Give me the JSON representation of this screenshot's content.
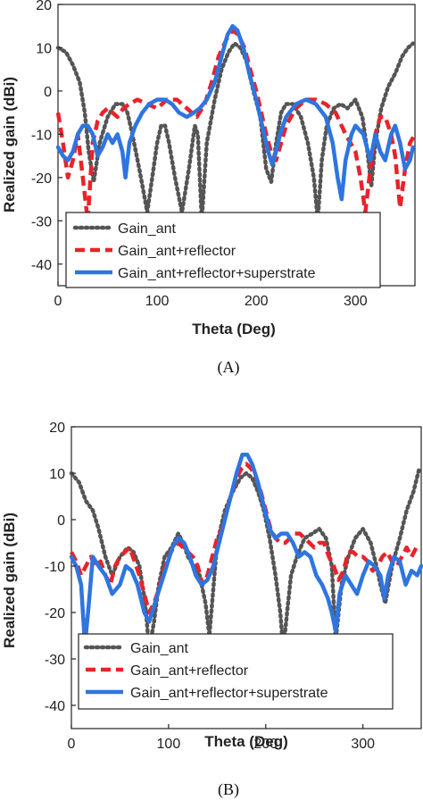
{
  "chart_data": [
    {
      "type": "line",
      "caption": "(A)",
      "xlabel": "Theta (Deg)",
      "ylabel": "Realized gain (dBi)",
      "xlim": [
        0,
        360
      ],
      "ylim": [
        -45,
        20
      ],
      "x_ticks": [
        0,
        100,
        200,
        300
      ],
      "y_ticks": [
        20,
        10,
        0,
        -10,
        -20,
        -30,
        -40
      ],
      "grid": false,
      "legend_position": "bottom-left",
      "series": [
        {
          "name": "Gain_ant",
          "color": "#555555",
          "style": "dotted",
          "x": [
            0,
            8,
            15,
            22,
            27,
            31,
            36,
            42,
            50,
            58,
            65,
            70,
            75,
            82,
            90,
            95,
            100,
            104,
            108,
            112,
            118,
            125,
            132,
            138,
            141,
            145,
            150,
            158,
            165,
            172,
            178,
            184,
            190,
            197,
            204,
            210,
            215,
            220,
            225,
            230,
            237,
            245,
            252,
            258,
            262,
            266,
            271,
            278,
            285,
            292,
            300,
            307,
            312,
            316,
            320,
            326,
            333,
            340,
            347,
            353,
            358
          ],
          "y": [
            10,
            9,
            6,
            2,
            -5,
            -14,
            -21,
            -12,
            -6,
            -3,
            -3,
            -5,
            -10,
            -18,
            -28,
            -20,
            -12,
            -8,
            -8,
            -12,
            -20,
            -28,
            -18,
            -8,
            -10,
            -30,
            -12,
            -2,
            5,
            9,
            11,
            10,
            7,
            0,
            -6,
            -18,
            -21,
            -12,
            -5,
            -3,
            -3,
            -6,
            -12,
            -20,
            -30,
            -16,
            -8,
            -4,
            -3,
            -4,
            -2,
            -6,
            -14,
            -22,
            -12,
            -4,
            1,
            4,
            8,
            10,
            11
          ]
        },
        {
          "name": "Gain_ant+reflector",
          "color": "#e8232a",
          "style": "dashed",
          "x": [
            0,
            5,
            10,
            15,
            20,
            25,
            30,
            35,
            40,
            45,
            50,
            55,
            60,
            66,
            72,
            80,
            90,
            100,
            110,
            120,
            130,
            140,
            148,
            155,
            162,
            170,
            176,
            182,
            188,
            195,
            200,
            205,
            210,
            216,
            220,
            225,
            230,
            240,
            250,
            260,
            270,
            280,
            290,
            300,
            305,
            310,
            315,
            320,
            325,
            330,
            336,
            340,
            345,
            350,
            355,
            360
          ],
          "y": [
            -5,
            -12,
            -20,
            -16,
            -10,
            -20,
            -30,
            -12,
            -7,
            -5,
            -4,
            -5,
            -6,
            -4,
            -3,
            -2,
            -3,
            -4,
            -2,
            -2,
            -4,
            -6,
            -3,
            2,
            8,
            12,
            14,
            13,
            10,
            4,
            0,
            -5,
            -10,
            -15,
            -16,
            -12,
            -8,
            -4,
            -2,
            -2,
            -3,
            -5,
            -10,
            -14,
            -20,
            -28,
            -18,
            -10,
            -6,
            -6,
            -10,
            -15,
            -27,
            -18,
            -12,
            -10
          ]
        },
        {
          "name": "Gain_ant+reflector+superstrate",
          "color": "#2e75e0",
          "style": "solid",
          "x": [
            0,
            5,
            10,
            15,
            20,
            25,
            30,
            35,
            40,
            45,
            50,
            55,
            60,
            65,
            68,
            72,
            78,
            85,
            92,
            100,
            108,
            115,
            122,
            130,
            137,
            143,
            150,
            158,
            165,
            171,
            176,
            181,
            187,
            193,
            200,
            206,
            212,
            216,
            220,
            224,
            230,
            240,
            250,
            260,
            270,
            277,
            282,
            286,
            290,
            296,
            300,
            308,
            315,
            320,
            325,
            330,
            336,
            340,
            345,
            350,
            355,
            358
          ],
          "y": [
            -13,
            -15,
            -16,
            -14,
            -10,
            -8,
            -8,
            -10,
            -15,
            -13,
            -10,
            -12,
            -10,
            -14,
            -20,
            -12,
            -8,
            -5,
            -3,
            -2,
            -2,
            -3,
            -5,
            -6,
            -5,
            -4,
            -2,
            2,
            8,
            13,
            15,
            14,
            10,
            4,
            -2,
            -8,
            -14,
            -17,
            -14,
            -10,
            -6,
            -3,
            -2,
            -3,
            -6,
            -12,
            -20,
            -25,
            -16,
            -10,
            -8,
            -10,
            -16,
            -10,
            -14,
            -16,
            -10,
            -8,
            -12,
            -18,
            -16,
            -13
          ]
        }
      ]
    },
    {
      "type": "line",
      "caption": "(B)",
      "xlabel": "Theta (Deg)",
      "ylabel": "Realized gain (dBi)",
      "xlim": [
        0,
        360
      ],
      "ylim": [
        -45,
        20
      ],
      "x_ticks": [
        0,
        100,
        200,
        300
      ],
      "y_ticks": [
        20,
        10,
        0,
        -10,
        -20,
        -30,
        -40
      ],
      "grid": false,
      "legend_position": "bottom-left",
      "series": [
        {
          "name": "Gain_ant",
          "color": "#555555",
          "style": "dotted",
          "x": [
            0,
            8,
            15,
            22,
            28,
            35,
            42,
            50,
            58,
            64,
            70,
            76,
            80,
            85,
            90,
            96,
            103,
            110,
            115,
            120,
            126,
            132,
            138,
            142,
            146,
            150,
            158,
            166,
            174,
            180,
            186,
            192,
            198,
            204,
            210,
            215,
            218,
            222,
            226,
            232,
            240,
            248,
            255,
            262,
            268,
            272,
            278,
            285,
            292,
            300,
            308,
            314,
            318,
            323,
            330,
            338,
            345,
            352,
            358
          ],
          "y": [
            10,
            8,
            4,
            2,
            -2,
            -8,
            -12,
            -8,
            -6,
            -7,
            -10,
            -18,
            -28,
            -22,
            -14,
            -8,
            -6,
            -3,
            -5,
            -8,
            -10,
            -12,
            -18,
            -25,
            -15,
            -5,
            2,
            6,
            9,
            10,
            9,
            6,
            2,
            -4,
            -12,
            -20,
            -28,
            -20,
            -12,
            -8,
            -4,
            -3,
            -2,
            -4,
            -10,
            -26,
            -14,
            -8,
            -4,
            -2,
            -5,
            -10,
            -14,
            -18,
            -10,
            -4,
            2,
            6,
            11
          ]
        },
        {
          "name": "Gain_ant+reflector",
          "color": "#e8232a",
          "style": "dashed",
          "x": [
            0,
            5,
            10,
            15,
            20,
            25,
            30,
            35,
            40,
            45,
            50,
            55,
            60,
            65,
            70,
            75,
            80,
            85,
            90,
            95,
            100,
            105,
            110,
            115,
            120,
            125,
            130,
            135,
            140,
            145,
            150,
            155,
            160,
            165,
            170,
            175,
            180,
            185,
            190,
            195,
            200,
            205,
            210,
            215,
            220,
            225,
            230,
            235,
            240,
            245,
            250,
            255,
            260,
            265,
            270,
            275,
            280,
            285,
            290,
            295,
            300,
            305,
            310,
            315,
            320,
            325,
            330,
            335,
            340,
            345,
            350,
            355,
            360
          ],
          "y": [
            -7,
            -9,
            -12,
            -10,
            -8,
            -10,
            -9,
            -12,
            -14,
            -10,
            -8,
            -7,
            -6,
            -9,
            -12,
            -16,
            -20,
            -18,
            -15,
            -11,
            -8,
            -6,
            -5,
            -6,
            -7,
            -8,
            -10,
            -14,
            -12,
            -8,
            -4,
            -2,
            2,
            6,
            9,
            11,
            12,
            11,
            9,
            6,
            2,
            -2,
            -4,
            -5,
            -5,
            -4,
            -3,
            -3,
            -4,
            -5,
            -6,
            -5,
            -5,
            -8,
            -10,
            -13,
            -11,
            -7,
            -7,
            -8,
            -8,
            -9,
            -11,
            -10,
            -8,
            -7,
            -9,
            -10,
            -8,
            -6,
            -8,
            -6,
            -6
          ]
        },
        {
          "name": "Gain_ant+reflector+superstrate",
          "color": "#2e75e0",
          "style": "solid",
          "x": [
            0,
            5,
            10,
            14,
            18,
            22,
            28,
            35,
            42,
            50,
            56,
            62,
            68,
            75,
            80,
            86,
            92,
            98,
            104,
            110,
            116,
            122,
            128,
            134,
            140,
            146,
            152,
            158,
            164,
            170,
            176,
            181,
            186,
            192,
            198,
            204,
            210,
            216,
            222,
            228,
            234,
            240,
            246,
            252,
            258,
            264,
            268,
            272,
            276,
            282,
            288,
            294,
            300,
            306,
            312,
            318,
            322,
            326,
            332,
            338,
            344,
            350,
            356,
            360
          ],
          "y": [
            -8,
            -10,
            -14,
            -27,
            -18,
            -8,
            -10,
            -12,
            -16,
            -14,
            -10,
            -11,
            -14,
            -20,
            -22,
            -18,
            -14,
            -10,
            -6,
            -4,
            -5,
            -8,
            -12,
            -14,
            -13,
            -10,
            -5,
            0,
            5,
            10,
            14,
            14,
            12,
            8,
            3,
            -2,
            -4,
            -3,
            -3,
            -5,
            -8,
            -7,
            -8,
            -12,
            -14,
            -17,
            -20,
            -24,
            -16,
            -12,
            -14,
            -16,
            -12,
            -9,
            -10,
            -12,
            -17,
            -12,
            -8,
            -9,
            -14,
            -11,
            -12,
            -10
          ]
        }
      ]
    }
  ]
}
